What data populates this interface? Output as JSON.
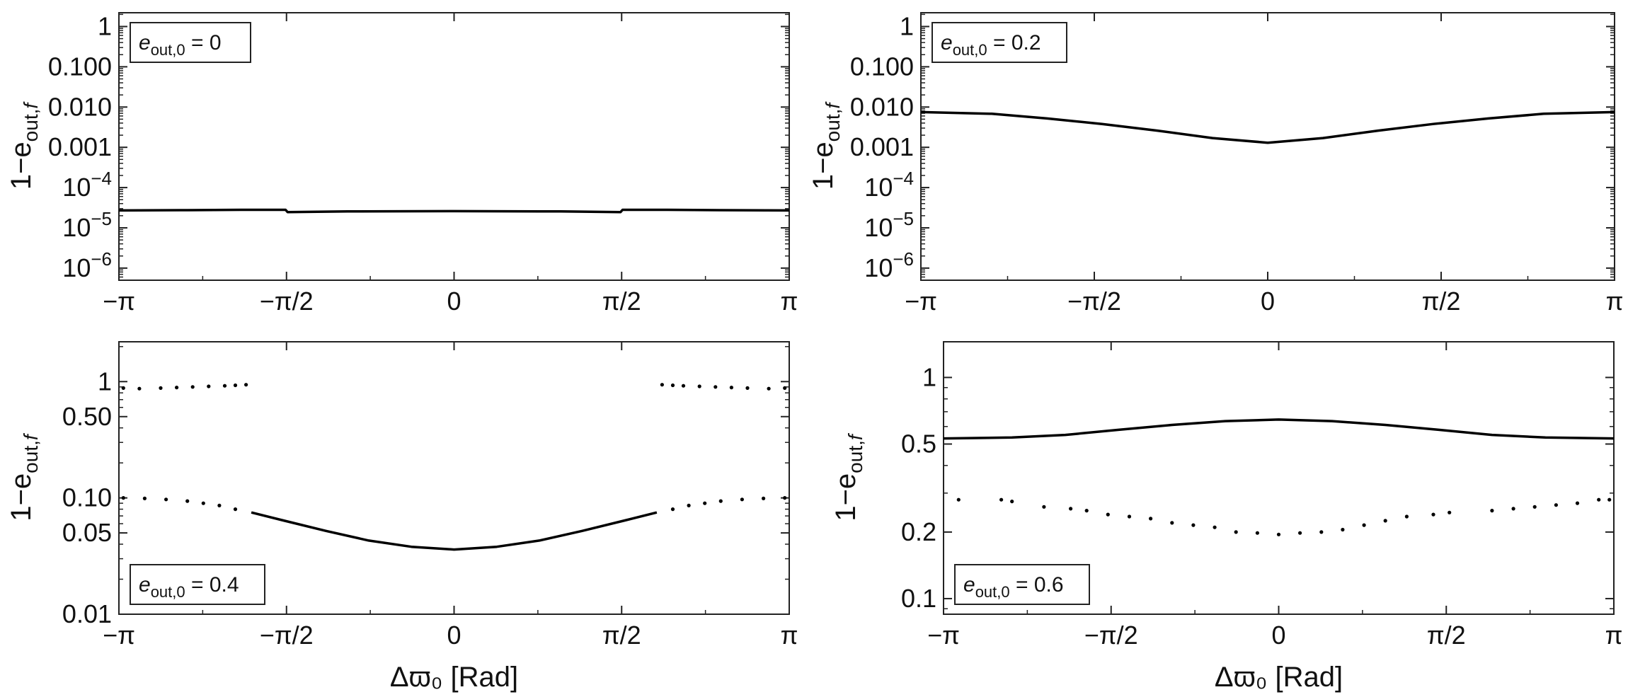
{
  "chart_data": [
    {
      "type": "line",
      "panel": "top-left",
      "legend": {
        "label": "e",
        "sub": "out,0",
        "value": "= 0",
        "position": "top-left"
      },
      "ylabel": {
        "prefix": "1−e",
        "sub": "out,",
        "sub_italic": "f"
      },
      "xlabel": "",
      "yscale": "log",
      "xlim": [
        -3.14159,
        3.14159
      ],
      "ylim": [
        5e-07,
        2.2
      ],
      "x_ticks": [
        {
          "value": -3.14159,
          "label": "−π"
        },
        {
          "value": -1.5708,
          "label": "−π/2"
        },
        {
          "value": 0,
          "label": "0"
        },
        {
          "value": 1.5708,
          "label": "π/2"
        },
        {
          "value": 3.14159,
          "label": "π"
        }
      ],
      "y_ticks": [
        {
          "value": 1,
          "label": "1"
        },
        {
          "value": 0.1,
          "label": "0.100"
        },
        {
          "value": 0.01,
          "label": "0.010"
        },
        {
          "value": 0.001,
          "label": "0.001"
        },
        {
          "value": 0.0001,
          "label": "10",
          "exp": "−4"
        },
        {
          "value": 1e-05,
          "label": "10",
          "exp": "−5"
        },
        {
          "value": 1e-06,
          "label": "10",
          "exp": "−6"
        }
      ],
      "series": [
        {
          "style": "line",
          "x": [
            -3.14159,
            -2.5,
            -2.0,
            -1.58,
            -1.56,
            -1.0,
            0,
            1.0,
            1.56,
            1.58,
            2.0,
            2.5,
            3.14159
          ],
          "y": [
            2.7e-05,
            2.75e-05,
            2.8e-05,
            2.8e-05,
            2.45e-05,
            2.55e-05,
            2.6e-05,
            2.55e-05,
            2.45e-05,
            2.8e-05,
            2.8e-05,
            2.75e-05,
            2.7e-05
          ]
        }
      ]
    },
    {
      "type": "line",
      "panel": "top-right",
      "legend": {
        "label": "e",
        "sub": "out,0",
        "value": "= 0.2",
        "position": "top-left"
      },
      "ylabel": {
        "prefix": "1−e",
        "sub": "out,",
        "sub_italic": "f"
      },
      "xlabel": "",
      "yscale": "log",
      "xlim": [
        -3.14159,
        3.14159
      ],
      "ylim": [
        5e-07,
        2.2
      ],
      "x_ticks": [
        {
          "value": -3.14159,
          "label": "−π"
        },
        {
          "value": -1.5708,
          "label": "−π/2"
        },
        {
          "value": 0,
          "label": "0"
        },
        {
          "value": 1.5708,
          "label": "π/2"
        },
        {
          "value": 3.14159,
          "label": "π"
        }
      ],
      "y_ticks": [
        {
          "value": 1,
          "label": "1"
        },
        {
          "value": 0.1,
          "label": "0.100"
        },
        {
          "value": 0.01,
          "label": "0.010"
        },
        {
          "value": 0.001,
          "label": "0.001"
        },
        {
          "value": 0.0001,
          "label": "10",
          "exp": "−4"
        },
        {
          "value": 1e-05,
          "label": "10",
          "exp": "−5"
        },
        {
          "value": 1e-06,
          "label": "10",
          "exp": "−6"
        }
      ],
      "series": [
        {
          "style": "line",
          "x": [
            -3.14159,
            -2.5,
            -2.0,
            -1.5,
            -1.0,
            -0.5,
            0,
            0.5,
            1.0,
            1.5,
            2.0,
            2.5,
            3.14159
          ],
          "y": [
            0.0075,
            0.0068,
            0.0052,
            0.0038,
            0.0026,
            0.0017,
            0.0013,
            0.0017,
            0.0026,
            0.0038,
            0.0052,
            0.0068,
            0.0075
          ]
        }
      ]
    },
    {
      "type": "scatter",
      "panel": "bottom-left",
      "legend": {
        "label": "e",
        "sub": "out,0",
        "value": "= 0.4",
        "position": "bottom-left"
      },
      "ylabel": {
        "prefix": "1−e",
        "sub": "out,",
        "sub_italic": "f"
      },
      "xlabel": "Δϖ₀ [Rad]",
      "yscale": "log",
      "xlim": [
        -3.14159,
        3.14159
      ],
      "ylim": [
        0.01,
        2.2
      ],
      "x_ticks": [
        {
          "value": -3.14159,
          "label": "−π"
        },
        {
          "value": -1.5708,
          "label": "−π/2"
        },
        {
          "value": 0,
          "label": "0"
        },
        {
          "value": 1.5708,
          "label": "π/2"
        },
        {
          "value": 3.14159,
          "label": "π"
        }
      ],
      "y_ticks": [
        {
          "value": 1,
          "label": "1"
        },
        {
          "value": 0.5,
          "label": "0.50"
        },
        {
          "value": 0.1,
          "label": "0.10"
        },
        {
          "value": 0.05,
          "label": "0.05"
        },
        {
          "value": 0.01,
          "label": "0.01"
        }
      ],
      "series": [
        {
          "style": "line",
          "x": [
            -1.9,
            -1.6,
            -1.2,
            -0.8,
            -0.4,
            0,
            0.4,
            0.8,
            1.2,
            1.6,
            1.9
          ],
          "y": [
            0.075,
            0.064,
            0.052,
            0.043,
            0.038,
            0.036,
            0.038,
            0.043,
            0.052,
            0.064,
            0.075
          ]
        },
        {
          "style": "points",
          "x": [
            -3.1,
            -2.9,
            -2.7,
            -2.5,
            -2.35,
            -2.2,
            -2.05,
            2.05,
            2.2,
            2.35,
            2.5,
            2.7,
            2.9,
            3.1
          ],
          "y": [
            0.1,
            0.099,
            0.097,
            0.094,
            0.09,
            0.086,
            0.08,
            0.08,
            0.086,
            0.09,
            0.094,
            0.097,
            0.099,
            0.1
          ]
        },
        {
          "style": "points",
          "x": [
            -3.1,
            -2.95,
            -2.75,
            -2.6,
            -2.45,
            -2.3,
            -2.15,
            -2.05,
            -1.95,
            1.95,
            2.05,
            2.15,
            2.3,
            2.45,
            2.6,
            2.75,
            2.95,
            3.1
          ],
          "y": [
            0.88,
            0.87,
            0.88,
            0.89,
            0.9,
            0.91,
            0.92,
            0.93,
            0.94,
            0.94,
            0.93,
            0.92,
            0.91,
            0.9,
            0.89,
            0.88,
            0.87,
            0.88
          ]
        }
      ]
    },
    {
      "type": "scatter",
      "panel": "bottom-right",
      "legend": {
        "label": "e",
        "sub": "out,0",
        "value": "= 0.6",
        "position": "bottom-left"
      },
      "ylabel": {
        "prefix": "1−e",
        "sub": "out,",
        "sub_italic": "f"
      },
      "xlabel": "Δϖ₀ [Rad]",
      "yscale": "log",
      "xlim": [
        -3.14159,
        3.14159
      ],
      "ylim": [
        0.085,
        1.45
      ],
      "x_ticks": [
        {
          "value": -3.14159,
          "label": "−π"
        },
        {
          "value": -1.5708,
          "label": "−π/2"
        },
        {
          "value": 0,
          "label": "0"
        },
        {
          "value": 1.5708,
          "label": "π/2"
        },
        {
          "value": 3.14159,
          "label": "π"
        }
      ],
      "y_ticks": [
        {
          "value": 1,
          "label": "1"
        },
        {
          "value": 0.5,
          "label": "0.5"
        },
        {
          "value": 0.2,
          "label": "0.2"
        },
        {
          "value": 0.1,
          "label": "0.1"
        }
      ],
      "series": [
        {
          "style": "line",
          "x": [
            -3.14159,
            -2.5,
            -2.0,
            -1.5,
            -1.0,
            -0.5,
            0,
            0.5,
            1.0,
            1.5,
            2.0,
            2.5,
            3.14159
          ],
          "y": [
            0.53,
            0.535,
            0.55,
            0.58,
            0.61,
            0.635,
            0.645,
            0.635,
            0.61,
            0.58,
            0.55,
            0.535,
            0.53
          ]
        },
        {
          "style": "points",
          "x": [
            -3.0,
            -2.6,
            -2.5,
            -2.2,
            -1.95,
            -1.8,
            -1.6,
            -1.4,
            -1.2,
            -1.0,
            -0.8,
            -0.6,
            -0.4,
            -0.2,
            0,
            0.2,
            0.4,
            0.6,
            0.8,
            1.0,
            1.2,
            1.45,
            1.6,
            2.0,
            2.2,
            2.4,
            2.6,
            2.8,
            3.0,
            3.1
          ],
          "y": [
            0.28,
            0.28,
            0.275,
            0.26,
            0.255,
            0.25,
            0.24,
            0.235,
            0.23,
            0.22,
            0.215,
            0.21,
            0.2,
            0.198,
            0.195,
            0.198,
            0.2,
            0.205,
            0.215,
            0.225,
            0.235,
            0.24,
            0.245,
            0.25,
            0.255,
            0.26,
            0.265,
            0.27,
            0.28,
            0.28
          ]
        }
      ]
    }
  ]
}
